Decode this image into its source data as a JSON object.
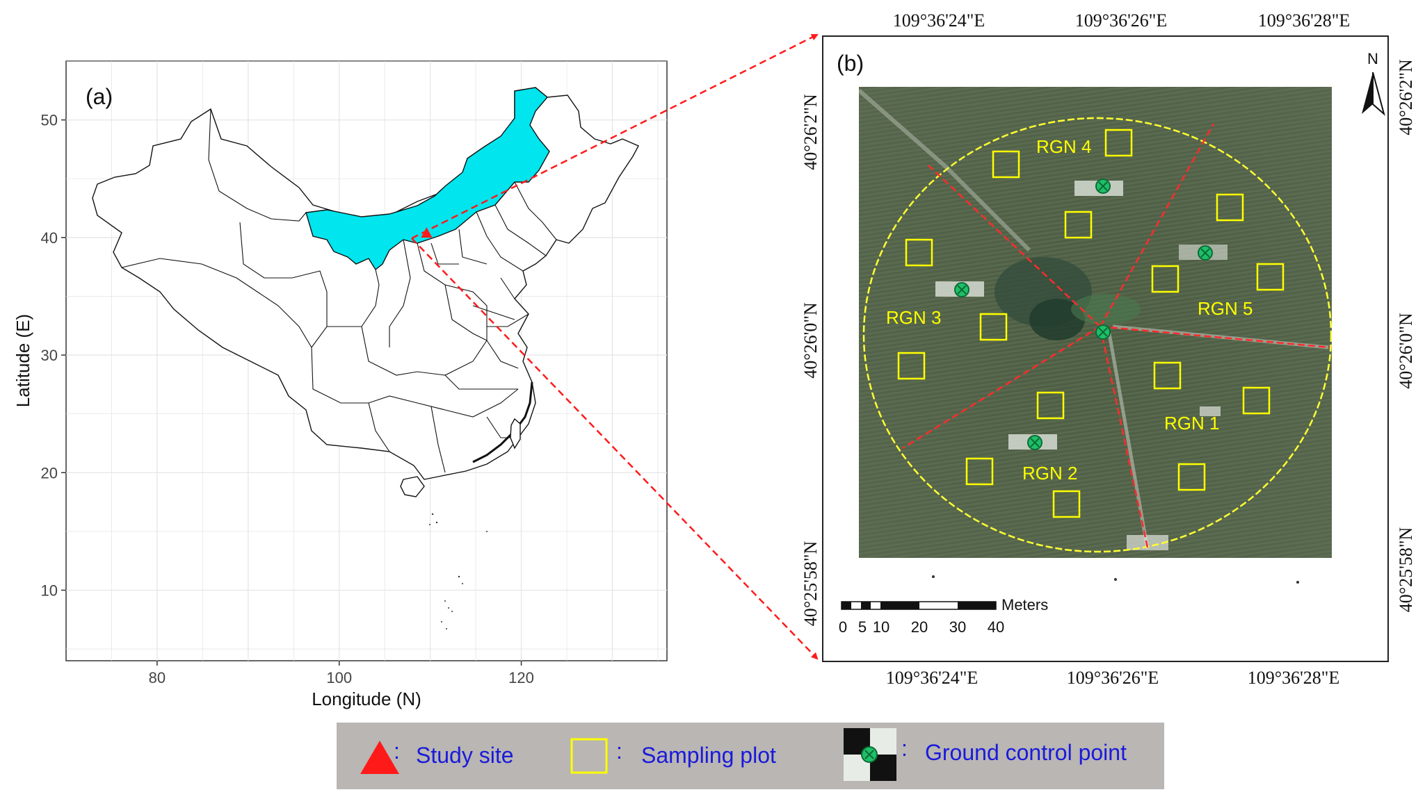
{
  "panel_a": {
    "label": "(a)",
    "xlabel": "Longitude (N)",
    "ylabel": "Latitude (E)",
    "x_ticks": [
      "80",
      "100",
      "120"
    ],
    "y_ticks": [
      "10",
      "20",
      "30",
      "40",
      "50"
    ],
    "xlim": [
      70,
      136
    ],
    "ylim": [
      4,
      55
    ],
    "highlight_color": "#00e5ee",
    "study_site": {
      "lon": 109.6,
      "lat": 40.4
    }
  },
  "panel_b": {
    "label": "(b)",
    "north_label": "N",
    "top_ticks": [
      "109°36'24\"E",
      "109°36'26\"E",
      "109°36'28\"E"
    ],
    "bottom_ticks": [
      "109°36'24\"E",
      "109°36'26\"E",
      "109°36'28\"E"
    ],
    "left_ticks": [
      "40°26'2\"N",
      "40°26'0\"N",
      "40°25'58\"N"
    ],
    "right_ticks": [
      "40°26'2\"N",
      "40°26'0\"N",
      "40°25'58\"N"
    ],
    "regions": [
      "RGN 1",
      "RGN 2",
      "RGN 3",
      "RGN 4",
      "RGN 5"
    ],
    "scalebar": {
      "unit": "Meters",
      "ticks": [
        "0",
        "5",
        "10",
        "20",
        "30",
        "40"
      ]
    },
    "plot_color": "#ffff00",
    "boundary_color": "#ff2b2b",
    "gcp_color": "#1fbf6a"
  },
  "legend": {
    "items": [
      {
        "symbol": "triangle-icon",
        "label": "Study site"
      },
      {
        "symbol": "square-icon",
        "label": "Sampling plot"
      },
      {
        "symbol": "gcp-icon",
        "label": "Ground control point"
      }
    ],
    "separator": ":",
    "text_color": "#1a1adb",
    "background": "#b9b6b3"
  }
}
